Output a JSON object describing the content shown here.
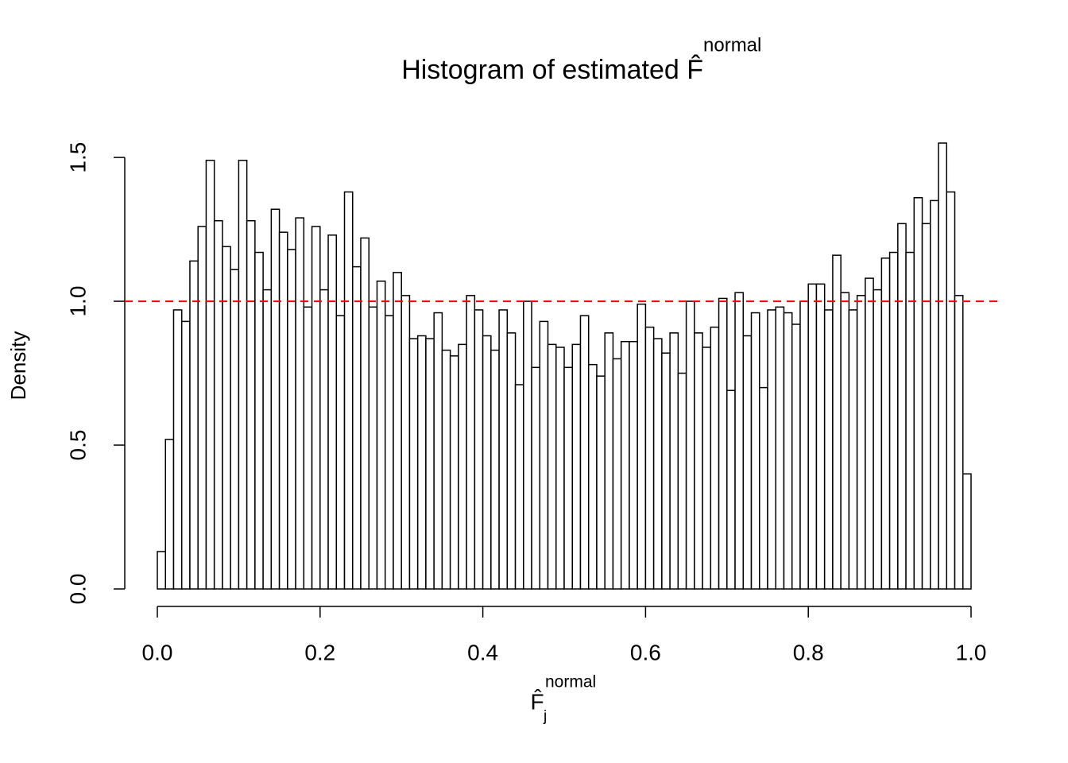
{
  "chart_data": {
    "type": "histogram",
    "title": "Histogram of estimated F̂",
    "title_superscript": "normal",
    "xlabel": {
      "base": "F̂",
      "sub": "j",
      "sup": "normal"
    },
    "ylabel": "Density",
    "bins": [
      0,
      0.01,
      0.02,
      0.03,
      0.04,
      0.05,
      0.06,
      0.07,
      0.08,
      0.09,
      0.1,
      0.11,
      0.12,
      0.13,
      0.14,
      0.15,
      0.16,
      0.17,
      0.18,
      0.19,
      0.2,
      0.21,
      0.22,
      0.23,
      0.24,
      0.25,
      0.26,
      0.27,
      0.28,
      0.29,
      0.3,
      0.31,
      0.32,
      0.33,
      0.34,
      0.35,
      0.36,
      0.37,
      0.38,
      0.39,
      0.4,
      0.41,
      0.42,
      0.43,
      0.44,
      0.45,
      0.46,
      0.47,
      0.48,
      0.49,
      0.5,
      0.51,
      0.52,
      0.53,
      0.54,
      0.55,
      0.56,
      0.57,
      0.58,
      0.59,
      0.6,
      0.61,
      0.62,
      0.63,
      0.64,
      0.65,
      0.66,
      0.67,
      0.68,
      0.69,
      0.7,
      0.71,
      0.72,
      0.73,
      0.74,
      0.75,
      0.76,
      0.77,
      0.78,
      0.79,
      0.8,
      0.81,
      0.82,
      0.83,
      0.84,
      0.85,
      0.86,
      0.87,
      0.88,
      0.89,
      0.9,
      0.91,
      0.92,
      0.93,
      0.94,
      0.95,
      0.96,
      0.97,
      0.98,
      0.99,
      1
    ],
    "values": [
      0.13,
      0.52,
      0.97,
      0.93,
      1.14,
      1.26,
      1.49,
      1.28,
      1.19,
      1.11,
      1.49,
      1.28,
      1.17,
      1.04,
      1.32,
      1.24,
      1.18,
      1.29,
      0.98,
      1.26,
      1.04,
      1.23,
      0.95,
      1.38,
      1.12,
      1.22,
      0.98,
      1.07,
      0.95,
      1.1,
      1.02,
      0.87,
      0.88,
      0.87,
      0.96,
      0.83,
      0.81,
      0.85,
      1.02,
      0.97,
      0.88,
      0.83,
      0.97,
      0.89,
      0.71,
      1.0,
      0.77,
      0.93,
      0.85,
      0.84,
      0.77,
      0.85,
      0.95,
      0.78,
      0.74,
      0.89,
      0.8,
      0.86,
      0.86,
      0.99,
      0.91,
      0.87,
      0.82,
      0.89,
      0.75,
      1.0,
      0.89,
      0.84,
      0.91,
      1.01,
      0.69,
      1.03,
      0.88,
      0.96,
      0.7,
      0.97,
      0.98,
      0.96,
      0.92,
      1.0,
      1.06,
      1.06,
      0.97,
      1.16,
      1.03,
      0.97,
      1.02,
      1.08,
      1.04,
      1.15,
      1.17,
      1.27,
      1.17,
      1.36,
      1.27,
      1.35,
      1.55,
      1.38,
      1.02,
      0.4
    ],
    "color": "#ffffff",
    "edgecolor": "#000000",
    "xlim": [
      0,
      1
    ],
    "ylim": [
      0,
      1.55
    ],
    "xticks": [
      {
        "value": 0,
        "label": "0.0"
      },
      0.2,
      0.4,
      0.6,
      0.8,
      {
        "value": 1,
        "label": "1.0"
      }
    ],
    "yticks": [
      {
        "value": 0,
        "label": "0.0"
      },
      0.5,
      {
        "value": 1,
        "label": "1.0"
      },
      1.5
    ],
    "hline": {
      "value": 1,
      "color": "#ff0000"
    }
  }
}
